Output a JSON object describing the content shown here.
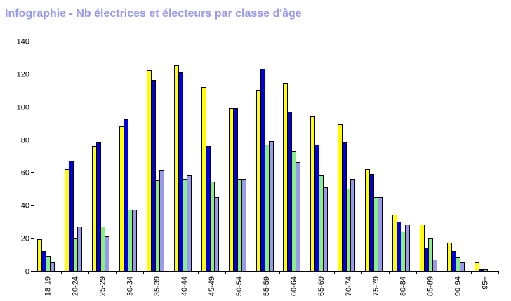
{
  "title": "Infographie - Nb électrices et électeurs par classe d'âge",
  "colors": {
    "series": [
      "#ffff00",
      "#0000dd",
      "#88ee88",
      "#9999ee"
    ],
    "axis": "#000000",
    "title": "#9999ee"
  },
  "chart_data": {
    "type": "bar",
    "title": "Infographie - Nb électrices et électeurs par classe d'âge",
    "xlabel": "",
    "ylabel": "",
    "ylim": [
      0,
      140
    ],
    "yticks": [
      0,
      20,
      40,
      60,
      80,
      100,
      120,
      140
    ],
    "grid": false,
    "legend": "none",
    "categories": [
      "18-19",
      "20-24",
      "25-29",
      "30-34",
      "35-39",
      "40-44",
      "45-49",
      "50-54",
      "55-59",
      "60-64",
      "65-69",
      "70-74",
      "75-79",
      "80-84",
      "85-89",
      "90-94",
      "95+"
    ],
    "series": [
      {
        "values": [
          19,
          62,
          76,
          88,
          122,
          125,
          112,
          99,
          110,
          114,
          94,
          89,
          62,
          34,
          28,
          17,
          5
        ]
      },
      {
        "values": [
          12,
          67,
          78,
          92,
          116,
          121,
          76,
          99,
          123,
          97,
          77,
          78,
          59,
          30,
          14,
          12,
          1
        ]
      },
      {
        "values": [
          9,
          20,
          27,
          37,
          55,
          56,
          54,
          56,
          77,
          73,
          58,
          50,
          45,
          24,
          20,
          8,
          1
        ]
      },
      {
        "values": [
          5,
          27,
          21,
          37,
          61,
          58,
          45,
          56,
          79,
          66,
          51,
          56,
          45,
          28,
          7,
          5,
          0
        ]
      }
    ]
  }
}
